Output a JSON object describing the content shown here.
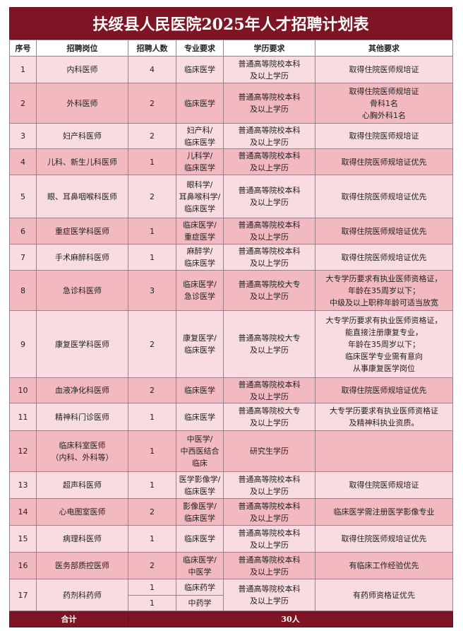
{
  "title": "扶绥县人民医院2025年人才招聘计划表",
  "headers": [
    "序号",
    "招聘岗位",
    "招聘人数",
    "专业要求",
    "学历要求",
    "其他要求"
  ],
  "rows": [
    {
      "no": "1",
      "post": "内科医师",
      "count": "4",
      "major": "临床医学",
      "edu": "普通高等院校本科\n及以上学历",
      "other": "取得住院医师规培证"
    },
    {
      "no": "2",
      "post": "外科医师",
      "count": "2",
      "major": "临床医学",
      "edu": "普通高等院校本科\n及以上学历",
      "other": "取得住院医师规培证\n骨科1名\n心胸外科1名"
    },
    {
      "no": "3",
      "post": "妇产科医师",
      "count": "2",
      "major": "妇产科/\n临床医学",
      "edu": "普通高等院校本科\n及以上学历",
      "other": "取得住院医师规培证"
    },
    {
      "no": "4",
      "post": "儿科、新生儿科医师",
      "count": "1",
      "major": "儿科学/\n临床医学",
      "edu": "普通高等院校本科\n及以上学历",
      "other": "取得住院医师规培证优先"
    },
    {
      "no": "5",
      "post": "眼、耳鼻咽喉科医师",
      "count": "2",
      "major": "眼科学/\n耳鼻喉科学/\n临床医学",
      "edu": "普通高等院校本科\n及以上学历",
      "other": "取得住院医师规培证优先"
    },
    {
      "no": "6",
      "post": "重症医学科医师",
      "count": "1",
      "major": "临床医学/\n重症医学",
      "edu": "普通高等院校本科\n及以上学历",
      "other": "取得住院医师规培证优先"
    },
    {
      "no": "7",
      "post": "手术麻醉科医师",
      "count": "1",
      "major": "麻醉学/\n临床医学",
      "edu": "普通高等院校本科\n及以上学历",
      "other": "取得住院医师规培证优先"
    },
    {
      "no": "8",
      "post": "急诊科医师",
      "count": "3",
      "major": "临床医学/\n急诊医学",
      "edu": "普通高等院校大专\n及以上学历",
      "other": "大专学历要求有执业医师资格证，\n年龄在35周岁以下；\n中级及以上职称年龄可适当放宽"
    },
    {
      "no": "9",
      "post": "康复医学科医师",
      "count": "2",
      "major": "康复医学/\n临床医学",
      "edu": "普通高等院校大专\n及以上学历",
      "other": "大专学历要求有执业医师资格证，\n能直接注册康复专业，\n年龄在35周岁以下；\n临床医学专业需有意向\n从事康复医学岗位"
    },
    {
      "no": "10",
      "post": "血液净化科医师",
      "count": "2",
      "major": "临床医学",
      "edu": "普通高等院校本科\n及以上学历",
      "other": "取得住院医师规培证优先"
    },
    {
      "no": "11",
      "post": "精神科门诊医师",
      "count": "1",
      "major": "临床医学",
      "edu": "普通高等院校大专\n及以上学历",
      "other": "大专学历要求有执业医师资格证\n及精神科执业资质。"
    },
    {
      "no": "12",
      "post": "临床科室医师\n（内科、外科等）",
      "count": "1",
      "major": "中医学/\n中西医结合\n临床",
      "edu": "研究生学历",
      "other": ""
    },
    {
      "no": "13",
      "post": "超声科医师",
      "count": "1",
      "major": "医学影像学/\n临床医学",
      "edu": "普通高等院校本科\n及以上学历",
      "other": "取得住院医师规培证"
    },
    {
      "no": "14",
      "post": "心电图室医师",
      "count": "2",
      "major": "影像医学/\n临床医学",
      "edu": "普通高等院校本科\n及以上学历",
      "other": "临床医学需注册医学影像专业"
    },
    {
      "no": "15",
      "post": "病理科医师",
      "count": "1",
      "major": "临床医学",
      "edu": "普通高等院校本科\n及以上学历",
      "other": "取得住院医师规培证优先"
    },
    {
      "no": "16",
      "post": "医务部质控医师",
      "count": "2",
      "major": "临床医学/\n中医学",
      "edu": "普通高等院校本科\n及以上学历",
      "other": "有临床工作经验优先"
    }
  ],
  "row17": {
    "no": "17",
    "post": "药剂科药师",
    "sub": [
      {
        "count": "1",
        "major": "临床药学"
      },
      {
        "count": "1",
        "major": "中药学"
      }
    ],
    "edu": "普通高等院校本科\n及以上学历",
    "other": "有药师资格证优先"
  },
  "total": {
    "label": "合计",
    "value": "30人"
  },
  "colors": {
    "title_bg": "#7f1524",
    "row_light": "#f9dce1",
    "row_dark": "#f2b9c1"
  }
}
